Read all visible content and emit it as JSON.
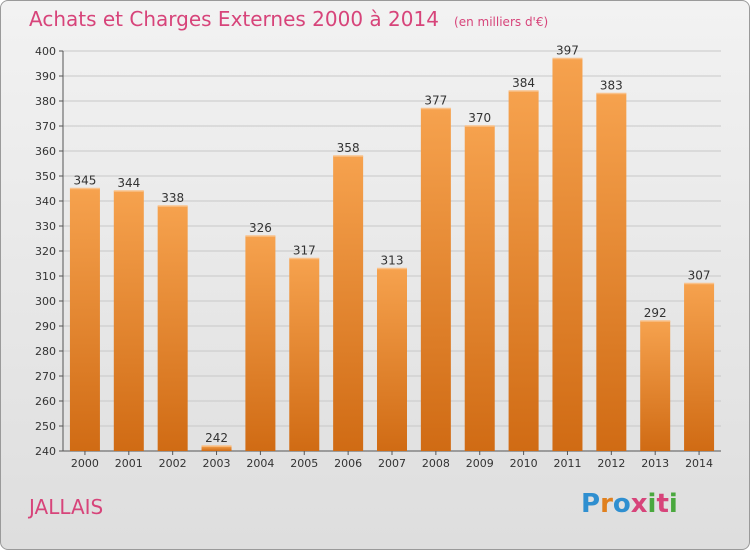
{
  "header": {
    "title": "Achats et Charges Externes 2000 à 2014",
    "subtitle": "(en milliers d'€)"
  },
  "footer": {
    "town": "JALLAIS",
    "logo_text": "Proxiti"
  },
  "colors": {
    "title": "#d7447a",
    "bar_top": "#f6a24e",
    "bar_bottom": "#d06b14",
    "grid": "#c8c8c8"
  },
  "chart_data": {
    "type": "bar",
    "title": "Achats et Charges Externes 2000 à 2014",
    "subtitle": "(en milliers d'€)",
    "xlabel": "",
    "ylabel": "",
    "categories": [
      "2000",
      "2001",
      "2002",
      "2003",
      "2004",
      "2005",
      "2006",
      "2007",
      "2008",
      "2009",
      "2010",
      "2011",
      "2012",
      "2013",
      "2014"
    ],
    "values": [
      345,
      344,
      338,
      242,
      326,
      317,
      358,
      313,
      377,
      370,
      384,
      397,
      383,
      292,
      307
    ],
    "ylim": [
      240,
      400
    ],
    "yticks": [
      240,
      250,
      260,
      270,
      280,
      290,
      300,
      310,
      320,
      330,
      340,
      350,
      360,
      370,
      380,
      390,
      400
    ],
    "grid": true,
    "data_labels": true
  }
}
